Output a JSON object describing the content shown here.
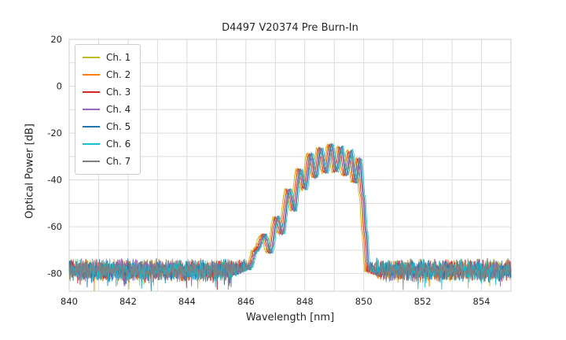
{
  "title": "D4497 V20374 Pre Burn-In",
  "chart_data": {
    "type": "line",
    "title": "D4497 V20374 Pre Burn-In",
    "xlabel": "Wavelength [nm]",
    "ylabel": "Optical Power [dB]",
    "xlim": [
      840,
      855
    ],
    "ylim": [
      -87.5,
      20
    ],
    "x_ticks": [
      840,
      842,
      844,
      846,
      848,
      850,
      852,
      854
    ],
    "y_ticks": [
      20,
      0,
      -20,
      -40,
      -60,
      -80
    ],
    "grid": {
      "x_step": 1,
      "y_step": 10,
      "color": "#dcdcdc",
      "border_color": "#cfcfcf"
    },
    "legend_position": "upper-left",
    "series": [
      {
        "name": "Ch. 1",
        "color": "#bcbd22",
        "offset_nm": -0.12
      },
      {
        "name": "Ch. 2",
        "color": "#ff7f0e",
        "offset_nm": -0.08
      },
      {
        "name": "Ch. 3",
        "color": "#d62728",
        "offset_nm": -0.04
      },
      {
        "name": "Ch. 4",
        "color": "#9467bd",
        "offset_nm": 0.0
      },
      {
        "name": "Ch. 5",
        "color": "#1f77b4",
        "offset_nm": 0.04
      },
      {
        "name": "Ch. 6",
        "color": "#17becf",
        "offset_nm": 0.08
      },
      {
        "name": "Ch. 7",
        "color": "#7f7f7f",
        "offset_nm": 0.02
      }
    ],
    "spectrum_envelope_nm_db": [
      [
        845.5,
        -81
      ],
      [
        846.1,
        -78
      ],
      [
        846.35,
        -70
      ],
      [
        846.62,
        -63.5
      ],
      [
        846.82,
        -71
      ],
      [
        847.05,
        -56
      ],
      [
        847.22,
        -63
      ],
      [
        847.45,
        -44
      ],
      [
        847.63,
        -53
      ],
      [
        847.82,
        -35.5
      ],
      [
        848.0,
        -44
      ],
      [
        848.18,
        -29
      ],
      [
        848.35,
        -39
      ],
      [
        848.52,
        -26.5
      ],
      [
        848.7,
        -37
      ],
      [
        848.88,
        -25
      ],
      [
        849.05,
        -36.5
      ],
      [
        849.22,
        -26
      ],
      [
        849.38,
        -38
      ],
      [
        849.55,
        -27.5
      ],
      [
        849.7,
        -41
      ],
      [
        849.85,
        -31
      ],
      [
        849.97,
        -47
      ],
      [
        850.05,
        -62
      ],
      [
        850.15,
        -79
      ],
      [
        851.0,
        -85
      ]
    ],
    "noise_floor": {
      "mean_db": -80,
      "spread_db": 7,
      "signal_jitter_db": 1.2
    }
  }
}
